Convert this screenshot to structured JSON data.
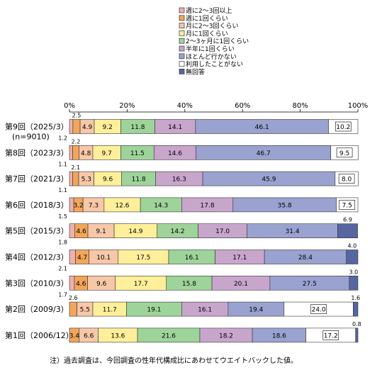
{
  "chart_data": {
    "type": "bar",
    "orientation": "horizontal",
    "stacked": true,
    "xlim": [
      0,
      100
    ],
    "x_ticks": [
      "0%",
      "20%",
      "40%",
      "60%",
      "80%",
      "100%"
    ],
    "grid": false,
    "legend_position": "top",
    "categories": [
      "第9回（2025/3）",
      "第8回（2023/3）",
      "第7回（2021/3）",
      "第6回（2018/3）",
      "第5回（2015/3）",
      "第4回（2012/3）",
      "第3回（2010/3）",
      "第2回（2009/3）",
      "第1回（2006/12）"
    ],
    "category_sublabels": [
      "(n=9010)",
      "",
      "",
      "",
      "",
      "",
      "",
      "",
      ""
    ],
    "series": [
      {
        "name": "週に2～3回以上",
        "color": "#f0b0b0",
        "values": [
          1.2,
          1.1,
          1.1,
          1.5,
          1.8,
          2.1,
          1.7,
          0.0,
          0.0
        ]
      },
      {
        "name": "週に1回くらい",
        "color": "#f2a65a",
        "values": [
          2.5,
          2.2,
          2.1,
          3.2,
          4.6,
          4.7,
          4.6,
          2.6,
          3.4
        ]
      },
      {
        "name": "月に2～3回くらい",
        "color": "#f7c8a8",
        "values": [
          4.9,
          4.8,
          5.3,
          7.3,
          9.1,
          10.1,
          9.6,
          5.5,
          6.6
        ]
      },
      {
        "name": "月に1回くらい",
        "color": "#ffef9a",
        "values": [
          9.2,
          9.7,
          9.6,
          12.6,
          14.9,
          17.5,
          17.7,
          11.7,
          13.6
        ]
      },
      {
        "name": "2～3ヶ月に1回くらい",
        "color": "#9ed49a",
        "values": [
          11.8,
          11.5,
          11.8,
          14.3,
          14.2,
          16.1,
          15.8,
          19.1,
          21.6
        ]
      },
      {
        "name": "半年に1回くらい",
        "color": "#c8a6cc",
        "values": [
          14.1,
          14.6,
          16.3,
          17.8,
          17.0,
          17.1,
          20.1,
          16.1,
          18.2
        ]
      },
      {
        "name": "ほとんど行かない",
        "color": "#9aa2d0",
        "values": [
          46.1,
          46.7,
          45.9,
          35.8,
          31.4,
          28.4,
          27.5,
          19.4,
          18.6
        ]
      },
      {
        "name": "利用したことがない",
        "color": "#ffffff",
        "values": [
          10.2,
          9.5,
          8.0,
          7.5,
          0.0,
          0.0,
          0.0,
          24.0,
          17.2
        ]
      },
      {
        "name": "無回答",
        "color": "#5566a0",
        "values": [
          0.0,
          0.0,
          0.0,
          0.0,
          6.9,
          4.0,
          3.0,
          1.6,
          0.8
        ]
      }
    ],
    "data_labels": [
      [
        "1.2",
        "2.5",
        "4.9",
        "9.2",
        "11.8",
        "14.1",
        "46.1",
        "10.2",
        ""
      ],
      [
        "1.1",
        "2.2",
        "4.8",
        "9.7",
        "11.5",
        "14.6",
        "46.7",
        "9.5",
        ""
      ],
      [
        "1.1",
        "2.1",
        "5.3",
        "9.6",
        "11.8",
        "16.3",
        "45.9",
        "8.0",
        ""
      ],
      [
        "1.5",
        "3.2",
        "7.3",
        "12.6",
        "14.3",
        "17.8",
        "35.8",
        "7.5",
        ""
      ],
      [
        "1.8",
        "4.6",
        "9.1",
        "14.9",
        "14.2",
        "17.0",
        "31.4",
        "",
        "6.9"
      ],
      [
        "2.1",
        "4.7",
        "10.1",
        "17.5",
        "16.1",
        "17.1",
        "28.4",
        "",
        "4.0"
      ],
      [
        "1.7",
        "4.6",
        "9.6",
        "17.7",
        "15.8",
        "20.1",
        "27.5",
        "",
        "3.0"
      ],
      [
        "",
        "2.6",
        "5.5",
        "11.7",
        "19.1",
        "16.1",
        "19.4",
        "24.0",
        "1.6"
      ],
      [
        "",
        "3.4",
        "6.6",
        "13.6",
        "21.6",
        "18.2",
        "18.6",
        "17.2",
        "0.8"
      ]
    ]
  },
  "note": "注）過去調査は、今回調査の性年代構成比にあわせてウエイトバックした値。"
}
